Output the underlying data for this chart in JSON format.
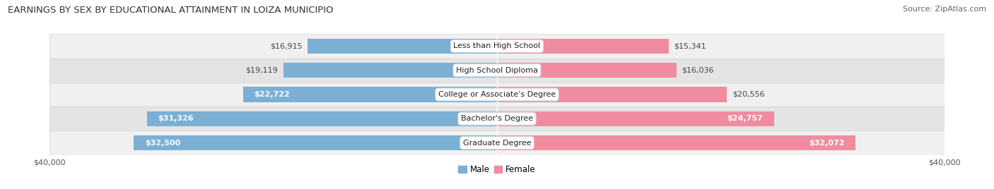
{
  "title": "EARNINGS BY SEX BY EDUCATIONAL ATTAINMENT IN LOIZA MUNICIPIO",
  "source": "Source: ZipAtlas.com",
  "categories": [
    "Less than High School",
    "High School Diploma",
    "College or Associate's Degree",
    "Bachelor's Degree",
    "Graduate Degree"
  ],
  "male_values": [
    16915,
    19119,
    22722,
    31326,
    32500
  ],
  "female_values": [
    15341,
    16036,
    20556,
    24757,
    32072
  ],
  "male_color": "#7bafd4",
  "female_color": "#f08ca0",
  "row_bg_even": "#f0f0f0",
  "row_bg_odd": "#e4e4e4",
  "max_value": 40000,
  "xlabel_left": "$40,000",
  "xlabel_right": "$40,000",
  "title_fontsize": 9.5,
  "source_fontsize": 8,
  "label_fontsize": 8,
  "bar_height": 0.62,
  "fig_width": 14.06,
  "fig_height": 2.68,
  "inside_label_threshold": 0.55
}
